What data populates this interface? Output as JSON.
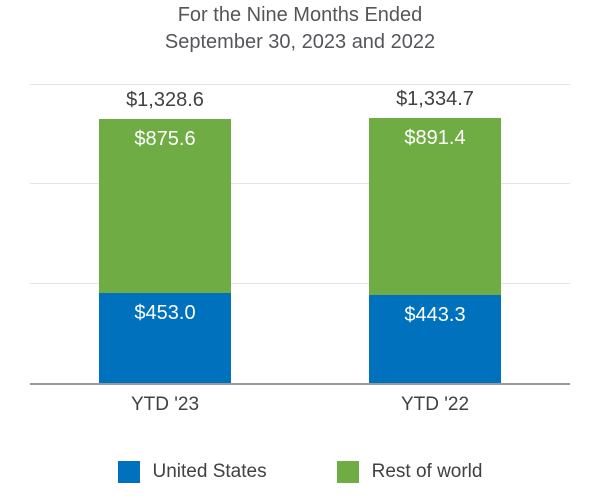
{
  "title": {
    "line1": "For the Nine Months Ended",
    "line2": "September 30, 2023 and 2022"
  },
  "chart_data": {
    "type": "bar",
    "stacked": true,
    "title": "For the Nine Months Ended September 30, 2023 and 2022",
    "categories": [
      "YTD '23",
      "YTD '22"
    ],
    "series": [
      {
        "name": "United States",
        "color": "#0071bc",
        "values": [
          453.0,
          443.3
        ],
        "labels": [
          "$453.0",
          "$443.3"
        ]
      },
      {
        "name": "Rest of world",
        "color": "#6fac44",
        "values": [
          875.6,
          891.4
        ],
        "labels": [
          "$875.6",
          "$891.4"
        ]
      }
    ],
    "totals": [
      1328.6,
      1334.7
    ],
    "total_labels": [
      "$1,328.6",
      "$1,334.7"
    ],
    "xlabel": "",
    "ylabel": "",
    "ylim": [
      0,
      1500
    ],
    "gridlines": [
      500,
      1000,
      1500
    ],
    "grid": true,
    "legend_position": "bottom",
    "colors": {
      "text": "#414042",
      "title": "#54565a",
      "gridline": "#e4e4e4",
      "axis": "#97999b"
    }
  },
  "legend": {
    "items": [
      {
        "label": "United States",
        "color": "#0071bc"
      },
      {
        "label": "Rest of world",
        "color": "#6fac44"
      }
    ]
  }
}
